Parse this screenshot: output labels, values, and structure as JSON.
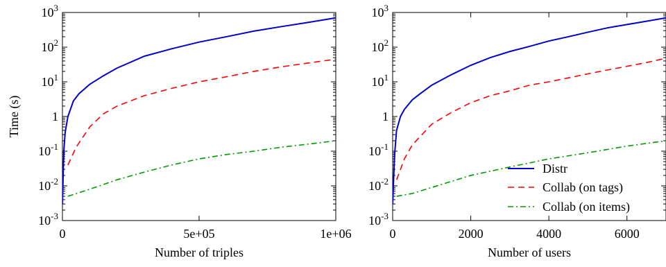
{
  "colors": {
    "distr": "#0000cc",
    "collab_tags": "#ff0000",
    "collab_items": "#009900",
    "axis": "#000000"
  },
  "chart_data": [
    {
      "type": "line",
      "xlabel": "Number of triples",
      "ylabel": "Time (s)",
      "xlim": [
        0,
        1000000
      ],
      "ylim": [
        0.001,
        1000
      ],
      "y_scale": "log",
      "grid": false,
      "legend": "none",
      "x_ticks": [
        {
          "value": 0,
          "label": "0"
        },
        {
          "value": 500000,
          "label": "5e+05"
        },
        {
          "value": 1000000,
          "label": "1e+06"
        }
      ],
      "y_ticks": [
        {
          "value": 0.001,
          "base": "10",
          "exp": "-3"
        },
        {
          "value": 0.01,
          "base": "10",
          "exp": "-2"
        },
        {
          "value": 0.1,
          "base": "10",
          "exp": "-1"
        },
        {
          "value": 1,
          "base": "1",
          "exp": ""
        },
        {
          "value": 10,
          "base": "10",
          "exp": "1"
        },
        {
          "value": 100,
          "base": "10",
          "exp": "2"
        },
        {
          "value": 1000,
          "base": "10",
          "exp": "3"
        }
      ],
      "series": [
        {
          "name": "Distr",
          "color": "#0000cc",
          "dash": "solid",
          "x": [
            0,
            5000,
            10000,
            20000,
            40000,
            60000,
            100000,
            150000,
            200000,
            300000,
            400000,
            500000,
            600000,
            700000,
            800000,
            900000,
            1000000
          ],
          "y": [
            0.003,
            0.1,
            0.35,
            1,
            2.8,
            4.5,
            8.5,
            15,
            25,
            55,
            90,
            140,
            200,
            290,
            390,
            520,
            700
          ]
        },
        {
          "name": "Collab (on tags)",
          "color": "#ff0000",
          "dash": "dashed",
          "x": [
            20000,
            50000,
            100000,
            150000,
            200000,
            300000,
            400000,
            500000,
            600000,
            700000,
            800000,
            900000,
            1000000
          ],
          "y": [
            0.04,
            0.13,
            0.5,
            1.2,
            2,
            4,
            6.5,
            10,
            14,
            20,
            27,
            35,
            45
          ]
        },
        {
          "name": "Collab (on items)",
          "color": "#009900",
          "dash": "dashdot",
          "x": [
            20000,
            100000,
            200000,
            300000,
            400000,
            500000,
            600000,
            700000,
            800000,
            900000,
            1000000
          ],
          "y": [
            0.005,
            0.008,
            0.015,
            0.025,
            0.04,
            0.06,
            0.08,
            0.1,
            0.13,
            0.16,
            0.2
          ]
        }
      ]
    },
    {
      "type": "line",
      "xlabel": "Number of users",
      "ylabel": "",
      "xlim": [
        0,
        7000
      ],
      "ylim": [
        0.001,
        1000
      ],
      "y_scale": "log",
      "grid": false,
      "legend": "bottom-right",
      "x_ticks": [
        {
          "value": 0,
          "label": "0"
        },
        {
          "value": 2000,
          "label": "2000"
        },
        {
          "value": 4000,
          "label": "4000"
        },
        {
          "value": 6000,
          "label": "6000"
        }
      ],
      "y_ticks": [
        {
          "value": 0.001,
          "base": "10",
          "exp": "-3"
        },
        {
          "value": 0.01,
          "base": "10",
          "exp": "-2"
        },
        {
          "value": 0.1,
          "base": "10",
          "exp": "-1"
        },
        {
          "value": 1,
          "base": "1",
          "exp": ""
        },
        {
          "value": 10,
          "base": "10",
          "exp": "1"
        },
        {
          "value": 100,
          "base": "10",
          "exp": "2"
        },
        {
          "value": 1000,
          "base": "10",
          "exp": "3"
        }
      ],
      "series": [
        {
          "name": "Distr",
          "color": "#0000cc",
          "dash": "solid",
          "x": [
            0,
            50,
            100,
            200,
            300,
            500,
            700,
            1000,
            1500,
            2000,
            2500,
            3000,
            3500,
            4000,
            4500,
            5000,
            5500,
            6000,
            6500,
            7000
          ],
          "y": [
            0.003,
            0.08,
            0.4,
            1,
            1.6,
            3,
            4.5,
            8,
            16,
            30,
            50,
            75,
            105,
            150,
            200,
            270,
            360,
            450,
            560,
            700
          ]
        },
        {
          "name": "Collab (on tags)",
          "color": "#ff0000",
          "dash": "dashed",
          "x": [
            100,
            300,
            500,
            1000,
            1500,
            2000,
            2500,
            3000,
            3500,
            4000,
            4500,
            5000,
            5500,
            6000,
            6500,
            7000
          ],
          "y": [
            0.015,
            0.06,
            0.15,
            0.6,
            1.3,
            2.5,
            4,
            5.5,
            8,
            10,
            13,
            17,
            22,
            28,
            36,
            48
          ]
        },
        {
          "name": "Collab (on items)",
          "color": "#009900",
          "dash": "dashdot",
          "x": [
            100,
            500,
            1000,
            2000,
            3000,
            4000,
            5000,
            6000,
            7000
          ],
          "y": [
            0.005,
            0.006,
            0.009,
            0.02,
            0.035,
            0.06,
            0.09,
            0.14,
            0.2
          ]
        }
      ]
    }
  ]
}
